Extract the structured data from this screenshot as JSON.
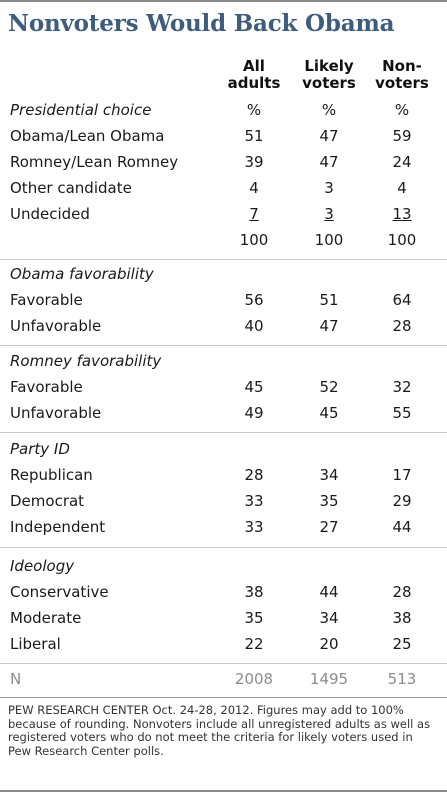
{
  "title": "Nonvoters Would Back Obama",
  "columns": [
    {
      "line1": "All",
      "line2": "adults"
    },
    {
      "line1": "Likely",
      "line2": "voters"
    },
    {
      "line1": "Non-",
      "line2": "voters"
    }
  ],
  "rows": [
    {
      "label": "Presidential choice",
      "section": true,
      "values": [
        "%",
        "%",
        "%"
      ]
    },
    {
      "label": "Obama/Lean Obama",
      "values": [
        "51",
        "47",
        "59"
      ]
    },
    {
      "label": "Romney/Lean Romney",
      "values": [
        "39",
        "47",
        "24"
      ]
    },
    {
      "label": "Other candidate",
      "values": [
        "4",
        "3",
        "4"
      ]
    },
    {
      "label": "Undecided",
      "values": [
        "7",
        "3",
        "13"
      ]
    },
    {
      "label": "",
      "values": [
        "100",
        "100",
        "100"
      ]
    },
    {
      "label": "Obama favorability",
      "section": true,
      "values": [
        "",
        "",
        ""
      ]
    },
    {
      "label": "Favorable",
      "values": [
        "56",
        "51",
        "64"
      ]
    },
    {
      "label": "Unfavorable",
      "values": [
        "40",
        "47",
        "28"
      ]
    },
    {
      "label": "Romney favorability",
      "section": true,
      "values": [
        "",
        "",
        ""
      ]
    },
    {
      "label": "Favorable",
      "values": [
        "45",
        "52",
        "32"
      ]
    },
    {
      "label": "Unfavorable",
      "values": [
        "49",
        "45",
        "55"
      ]
    },
    {
      "label": "Party ID",
      "section": true,
      "values": [
        "",
        "",
        ""
      ]
    },
    {
      "label": "Republican",
      "values": [
        "28",
        "34",
        "17"
      ]
    },
    {
      "label": "Democrat",
      "values": [
        "33",
        "35",
        "29"
      ]
    },
    {
      "label": "Independent",
      "values": [
        "33",
        "27",
        "44"
      ]
    },
    {
      "label": "Ideology",
      "section": true,
      "values": [
        "",
        "",
        ""
      ]
    },
    {
      "label": "Conservative",
      "values": [
        "38",
        "44",
        "28"
      ]
    },
    {
      "label": "Moderate",
      "values": [
        "35",
        "34",
        "38"
      ]
    },
    {
      "label": "Liberal",
      "values": [
        "22",
        "20",
        "25"
      ]
    },
    {
      "label": "N",
      "values": [
        "2008",
        "1495",
        "513"
      ]
    }
  ],
  "footnote": "PEW RESEARCH CENTER Oct. 24-28, 2012. Figures may add to 100% because of rounding. Nonvoters include all unregistered adults as well as registered voters who do not meet the criteria for likely voters used in Pew Research Center polls."
}
